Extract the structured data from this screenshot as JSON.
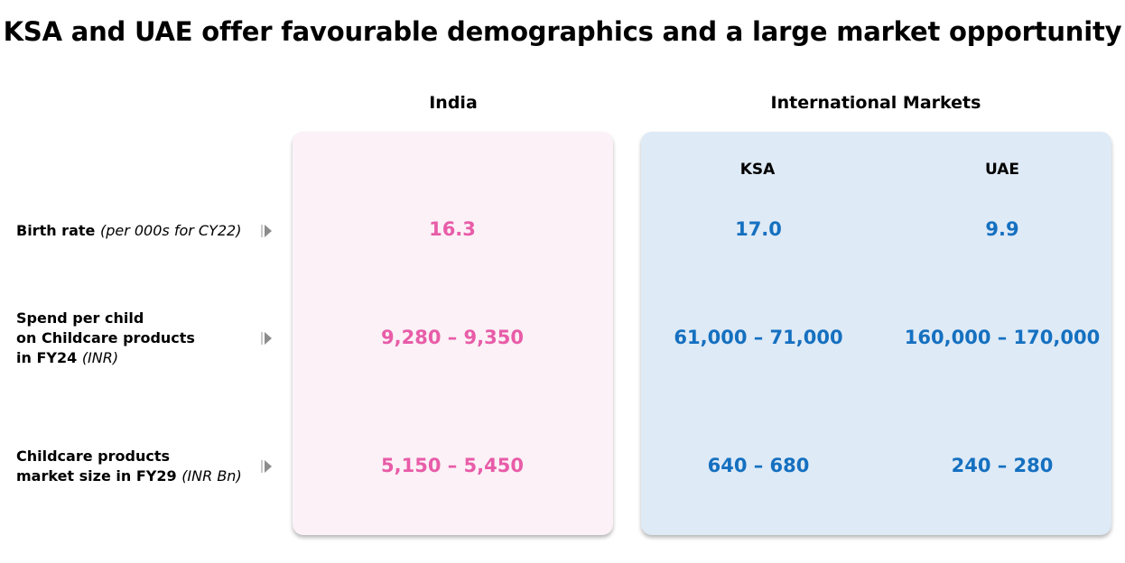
{
  "title": "KSA and UAE offer favourable demographics and a large market opportunity",
  "columns": {
    "india": "India",
    "international": "International Markets",
    "ksa": "KSA",
    "uae": "UAE"
  },
  "rows": [
    {
      "label_bold_lines": [
        "Birth rate"
      ],
      "label_italic": "(per 000s for CY22)",
      "india": "16.3",
      "ksa": "17.0",
      "uae": "9.9"
    },
    {
      "label_bold_lines": [
        "Spend per child",
        "on Childcare products",
        "in FY24"
      ],
      "label_italic": "(INR)",
      "india": "9,280 – 9,350",
      "ksa": "61,000 – 71,000",
      "uae": "160,000 – 170,000"
    },
    {
      "label_bold_lines": [
        "Childcare products",
        "market size in FY29"
      ],
      "label_italic": "(INR Bn)",
      "india": "5,150 – 5,450",
      "ksa": "640 – 680",
      "uae": "240 – 280"
    }
  ],
  "colors": {
    "india_panel": "#fbf1f6",
    "intl_panel": "#deeaf6",
    "india_value": "#e85ca8",
    "intl_value": "#1570c0"
  },
  "icons": {
    "row_marker": "triangle-right-icon"
  }
}
